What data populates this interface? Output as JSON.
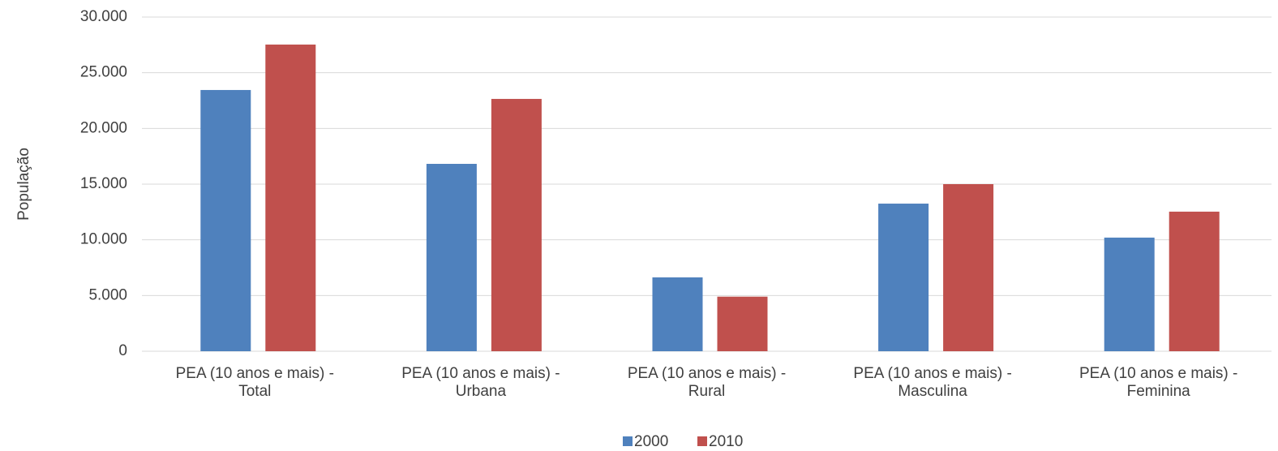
{
  "chart_data": {
    "type": "bar",
    "y_label": "População",
    "categories": [
      "PEA (10 anos e mais) - Total",
      "PEA (10 anos e mais) - Urbana",
      "PEA (10 anos e mais) - Rural",
      "PEA (10 anos e mais) - Masculina",
      "PEA (10 anos e mais) - Feminina"
    ],
    "series": [
      {
        "name": "2000",
        "color": "#4f81bd",
        "values": [
          23450,
          16820,
          6630,
          13250,
          10200
        ]
      },
      {
        "name": "2010",
        "color": "#c0504d",
        "values": [
          27530,
          22650,
          4900,
          15000,
          12530
        ]
      }
    ],
    "ylim": [
      0,
      30000
    ],
    "yticks": [
      0,
      {
        "value": 5000,
        "label": "5.000"
      },
      {
        "value": 10000,
        "label": "10.000"
      },
      {
        "value": 15000,
        "label": "15.000"
      },
      {
        "value": 20000,
        "label": "20.000"
      },
      {
        "value": 25000,
        "label": "25.000"
      },
      {
        "value": 30000,
        "label": "30.000"
      }
    ],
    "grid": true,
    "legend": "bottom"
  }
}
